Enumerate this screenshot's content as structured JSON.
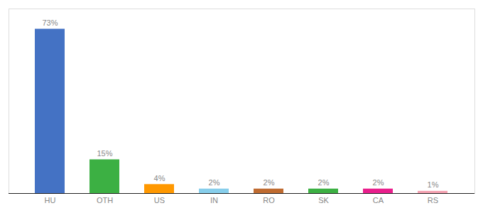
{
  "chart_data": {
    "type": "bar",
    "categories": [
      "HU",
      "OTH",
      "US",
      "IN",
      "RO",
      "SK",
      "CA",
      "RS"
    ],
    "values": [
      73,
      15,
      4,
      2,
      2,
      2,
      2,
      1
    ],
    "value_labels": [
      "73%",
      "15%",
      "4%",
      "2%",
      "2%",
      "2%",
      "2%",
      "1%"
    ],
    "colors": [
      "#4472C4",
      "#3CB043",
      "#FF9800",
      "#87CEEB",
      "#BF6B30",
      "#3CB043",
      "#E91E8C",
      "#F4A0B0"
    ],
    "ylim": [
      0,
      82
    ],
    "data_labels": true,
    "tick_labels": "x",
    "grid": false
  }
}
